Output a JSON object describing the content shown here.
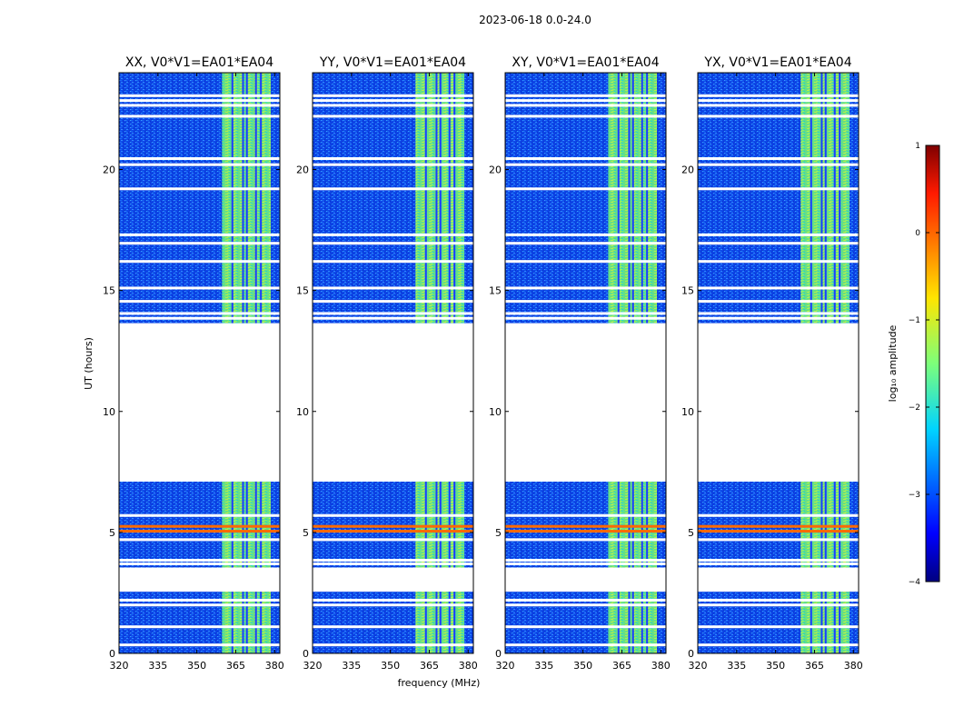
{
  "chart_data": {
    "type": "heatmap",
    "suptitle": "2023-06-18 0.0-24.0",
    "xlabel": "frequency (MHz)",
    "ylabel": "UT (hours)",
    "xlim": [
      320,
      382
    ],
    "ylim": [
      0,
      24
    ],
    "xticks": [
      320,
      335,
      350,
      365,
      380
    ],
    "yticks": [
      0,
      5,
      10,
      15,
      20
    ],
    "panels": [
      {
        "title": "XX, V0*V1=EA01*EA04"
      },
      {
        "title": "YY, V0*V1=EA01*EA04"
      },
      {
        "title": "XY, V0*V1=EA01*EA04"
      },
      {
        "title": "YX, V0*V1=EA01*EA04"
      }
    ],
    "bright_band_mhz": [
      359.7,
      378.5
    ],
    "channel_gaps_mhz": [
      363.7,
      367.8,
      369.3,
      372.8,
      374.7
    ],
    "data_segments_hours": [
      [
        0,
        2.55
      ],
      [
        3.55,
        7.1
      ],
      [
        13.65,
        24
      ]
    ],
    "flagged_rows_hours": [
      0.35,
      1.1,
      2.0,
      2.2,
      3.7,
      3.85,
      4.7,
      5.7,
      13.85,
      14.05,
      14.55,
      15.1,
      16.2,
      16.95,
      17.3,
      19.2,
      20.2,
      20.45,
      22.2,
      22.65,
      22.85,
      23.05
    ],
    "rfi_rows_hours": [
      5.05,
      5.25
    ],
    "colorbar": {
      "label": "log₁₀ amplitude",
      "range": [
        -4,
        1
      ],
      "ticks": [
        "1",
        "0",
        "−1",
        "−2",
        "−3",
        "−4"
      ],
      "colormap": "jet"
    }
  }
}
